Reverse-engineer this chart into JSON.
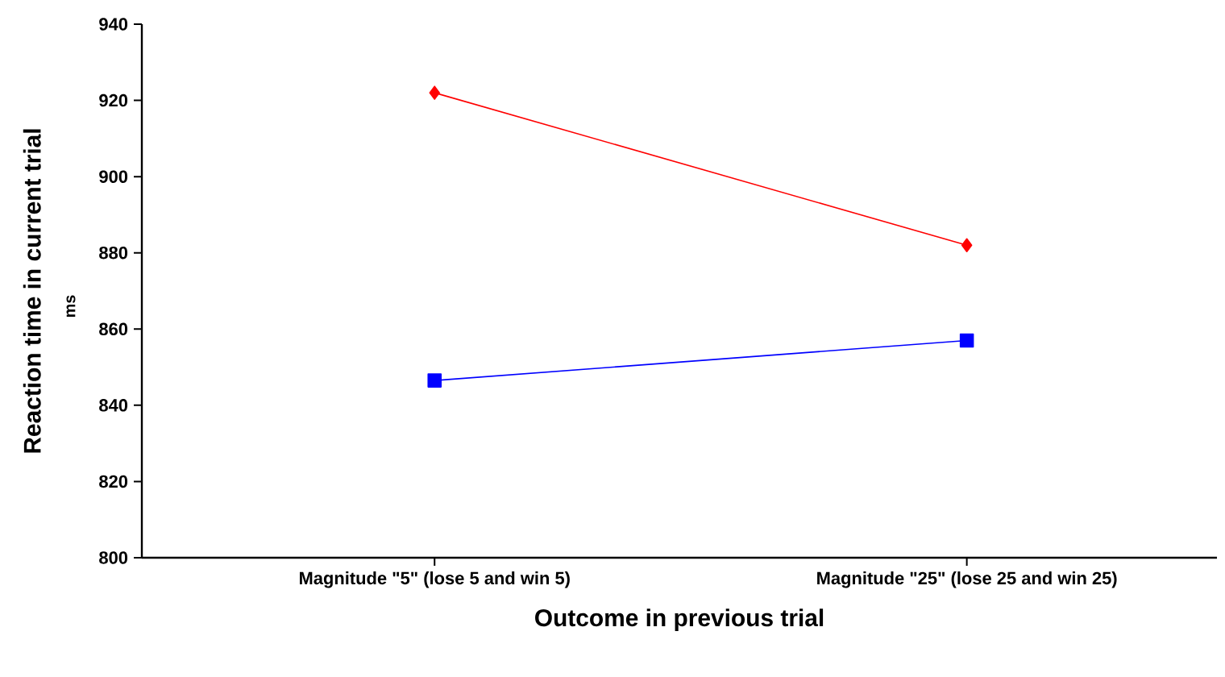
{
  "chart_data": {
    "type": "line",
    "categories": [
      "Magnitude \"5\" (lose 5 and win 5)",
      "Magnitude \"25\" (lose 25 and win 25)"
    ],
    "series": [
      {
        "color": "#ff0000",
        "values": [
          922,
          882
        ],
        "marker": "diamond"
      },
      {
        "color": "#0000ff",
        "values": [
          846.5,
          857
        ],
        "marker": "square"
      }
    ],
    "xlabel": "Outcome in previous trial",
    "ylabel": "Reaction time in current trial",
    "annotations": [
      "ms"
    ],
    "ylim": [
      800,
      940
    ],
    "yticks": [
      800,
      820,
      840,
      860,
      880,
      900,
      920,
      940
    ],
    "grid": false,
    "line_style": "solid"
  }
}
